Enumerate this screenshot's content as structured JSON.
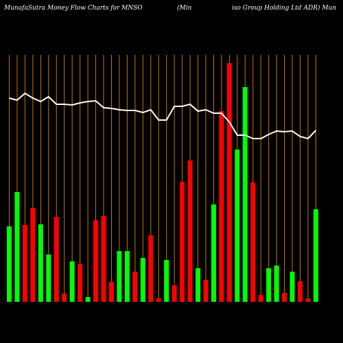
{
  "chart_data": {
    "type": "bar",
    "title_parts": [
      "MunafaSutra  Money Flow  Charts for MNSO",
      "(Min",
      "iso  Group Holding Ltd ADR) Mun"
    ],
    "categories": [
      null,
      null,
      null,
      null,
      null,
      null,
      null,
      null,
      null,
      null,
      null,
      null,
      null,
      null,
      null,
      null,
      null,
      null,
      null,
      null,
      null,
      null,
      null,
      null,
      null,
      null,
      null,
      null,
      null,
      null,
      null,
      null,
      null,
      null,
      null,
      null,
      null,
      null,
      null,
      null
    ],
    "values": [
      110,
      160,
      112,
      137,
      113,
      69,
      124,
      12,
      59,
      55,
      7,
      119,
      125,
      29,
      74,
      74,
      44,
      64,
      97,
      5,
      61,
      24,
      175,
      206,
      49,
      32,
      142,
      278,
      348,
      222,
      313,
      174,
      10,
      49,
      53,
      13,
      44,
      30,
      5,
      135
    ],
    "colors": [
      "#0f0",
      "#0f0",
      "#f00",
      "#f00",
      "#0f0",
      "#0f0",
      "#f00",
      "#f00",
      "#0f0",
      "#f00",
      "#0f0",
      "#f00",
      "#f00",
      "#f00",
      "#0f0",
      "#0f0",
      "#f00",
      "#0f0",
      "#f00",
      "#f00",
      "#0f0",
      "#f00",
      "#f00",
      "#f00",
      "#0f0",
      "#f00",
      "#0f0",
      "#f00",
      "#f00",
      "#0f0",
      "#0f0",
      "#f00",
      "#f00",
      "#0f0",
      "#0f0",
      "#f00",
      "#0f0",
      "#f00",
      "#f00",
      "#0f0"
    ],
    "line": {
      "color": "#fff",
      "values": [
        297,
        294,
        304,
        297,
        292,
        299,
        288,
        288,
        287,
        290,
        292,
        293,
        283,
        282,
        280,
        279,
        279,
        276,
        280,
        265,
        265,
        285,
        285,
        288,
        278,
        280,
        275,
        275,
        262,
        243,
        243,
        238,
        238,
        244,
        249,
        248,
        249,
        241,
        238,
        250
      ]
    },
    "ylim": [
      0,
      360
    ],
    "grid_color": "#c87800"
  }
}
